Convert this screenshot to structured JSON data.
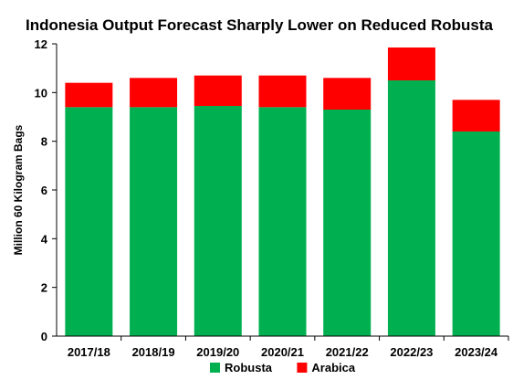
{
  "chart_data": {
    "type": "bar",
    "stacked": true,
    "title": "Indonesia Output Forecast Sharply Lower on Reduced Robusta",
    "xlabel": "",
    "ylabel": "Million 60 Kilogram Bags",
    "ylim": [
      0,
      12
    ],
    "yticks": [
      0,
      2,
      4,
      6,
      8,
      10,
      12
    ],
    "grid": false,
    "legend_position": "bottom",
    "categories": [
      "2017/18",
      "2018/19",
      "2019/20",
      "2020/21",
      "2021/22",
      "2022/23",
      "2023/24"
    ],
    "series": [
      {
        "name": "Robusta",
        "color": "#00b050",
        "values": [
          9.4,
          9.4,
          9.45,
          9.4,
          9.3,
          10.5,
          8.4
        ]
      },
      {
        "name": "Arabica",
        "color": "#ff0000",
        "values": [
          1.0,
          1.2,
          1.25,
          1.3,
          1.3,
          1.35,
          1.3
        ]
      }
    ]
  }
}
